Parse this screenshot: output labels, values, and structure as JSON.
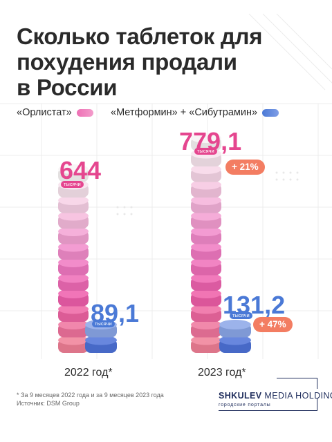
{
  "title_lines": [
    "Сколько таблеток для",
    "похудения продали",
    "в России"
  ],
  "legend": {
    "orlistat": "«Орлистат»",
    "other": "«Метформин» + «Сибутрамин»"
  },
  "colors": {
    "orlistat": "#e5468f",
    "other": "#4a79d6",
    "change_badge": "#f37d62",
    "legend_pink": "#ee70b5",
    "legend_blue": "#4a79d6"
  },
  "chart_data": {
    "type": "bar",
    "categories": [
      "2022 год*",
      "2023 год*"
    ],
    "unit": "тысячи",
    "series": [
      {
        "name": "«Орлистат»",
        "values": [
          644,
          779.1
        ],
        "labels": [
          "644",
          "779,1"
        ],
        "change": [
          null,
          "+ 21%"
        ]
      },
      {
        "name": "«Метформин» + «Сибутрамин»",
        "values": [
          89.1,
          131.2
        ],
        "labels": [
          "89,1",
          "131,2"
        ],
        "change": [
          null,
          "+ 47%"
        ]
      }
    ]
  },
  "footnote": "* За 9 месяцев 2022 года и за 9 месяцев 2023 года",
  "source": "Источник: DSM Group",
  "logo": {
    "brand": "SHKULEV",
    "rest": "MEDIA HOLDING",
    "sub": "городские порталы"
  }
}
